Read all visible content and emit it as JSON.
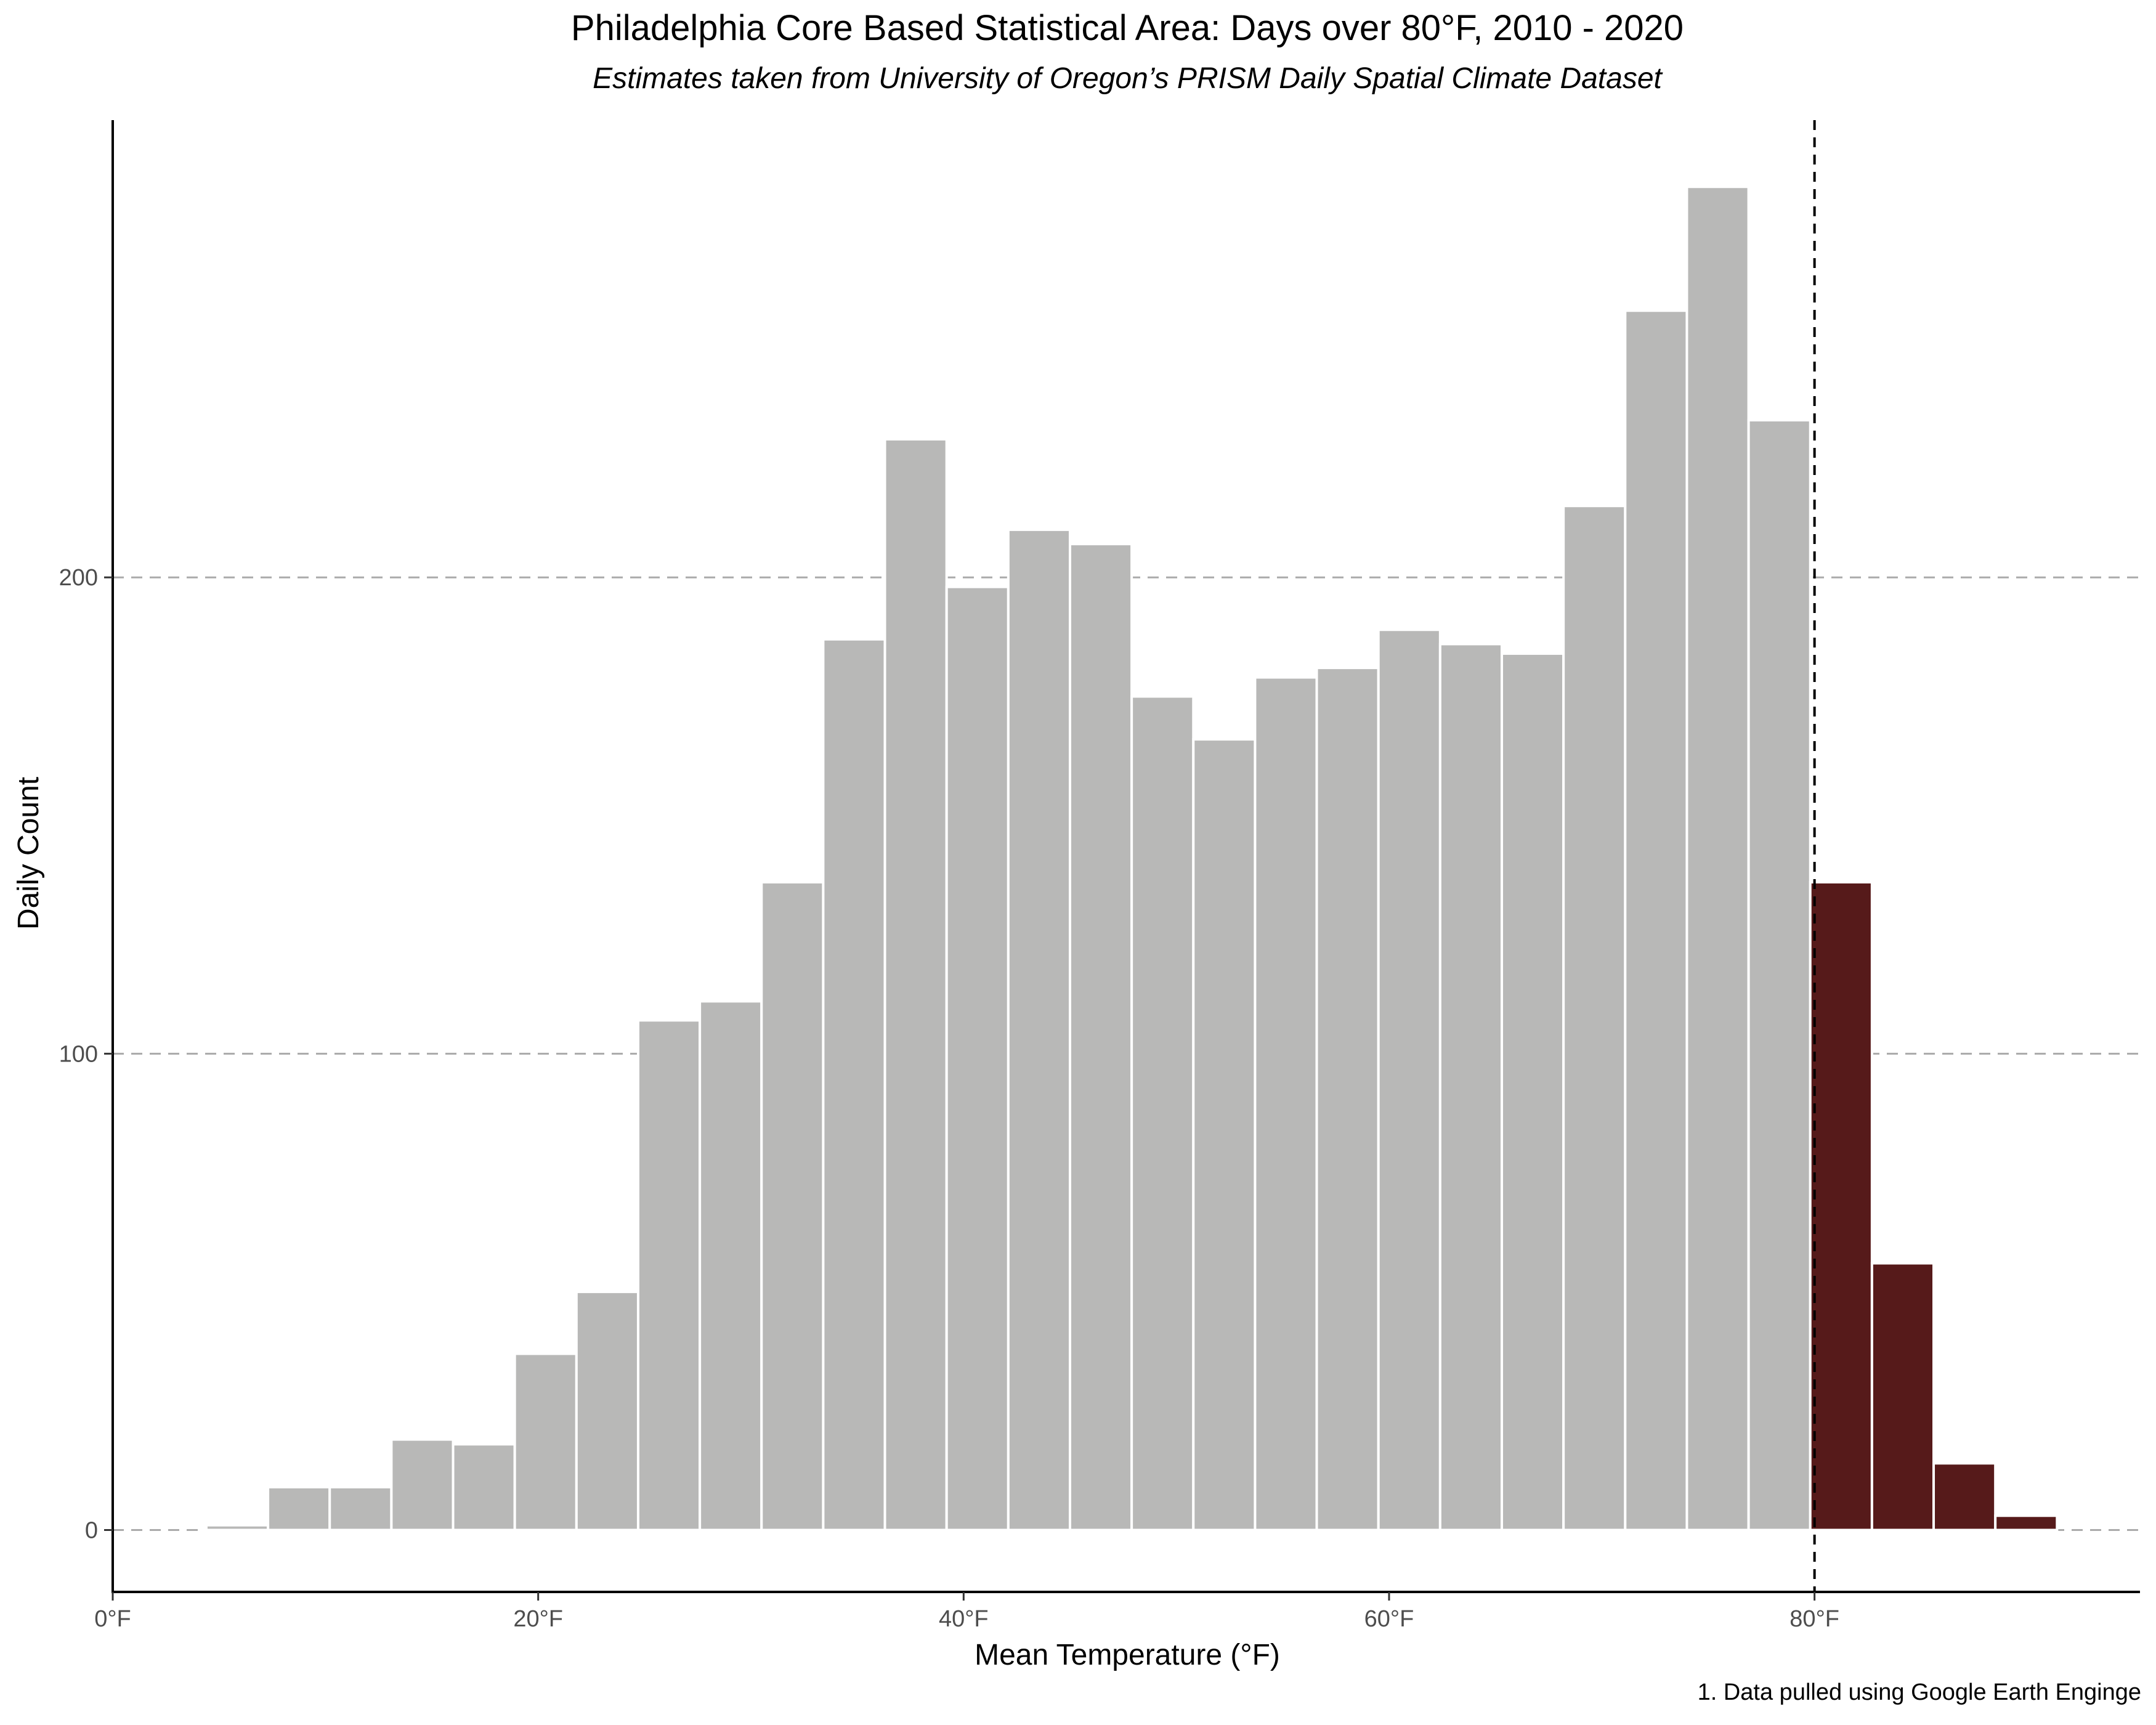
{
  "chart_data": {
    "type": "bar",
    "title": "Philadelphia Core Based Statistical Area: Days over 80°F, 2010 - 2020",
    "subtitle": "Estimates taken from University of Oregon’s PRISM Daily Spatial Climate Dataset",
    "xlabel": "Mean Temperature (°F)",
    "ylabel": "Daily Count",
    "caption": "1. Data pulled using Google Earth Enginge",
    "bin_width": 2.9,
    "bin_start": 4.4,
    "values": [
      1,
      9,
      9,
      19,
      18,
      37,
      50,
      107,
      111,
      136,
      187,
      229,
      198,
      210,
      207,
      175,
      166,
      179,
      181,
      189,
      186,
      184,
      215,
      256,
      282,
      233,
      136,
      56,
      14,
      3
    ],
    "threshold": 80,
    "highlight_from_bin": 26,
    "xlim": [
      0,
      95.3
    ],
    "ylim": [
      -13,
      296
    ],
    "x_ticks": [
      0,
      20,
      40,
      60,
      80
    ],
    "x_tick_labels": [
      "0°F",
      "20°F",
      "40°F",
      "60°F",
      "80°F"
    ],
    "y_ticks": [
      0,
      100,
      200
    ],
    "y_tick_labels": [
      "0",
      "100",
      "200"
    ],
    "grid": "horizontal dashed",
    "colors": {
      "normal": "#b8b8b7",
      "highlight": "#561a1a",
      "grid": "#aaaaaa",
      "bar_edge": "#ffffff"
    }
  }
}
